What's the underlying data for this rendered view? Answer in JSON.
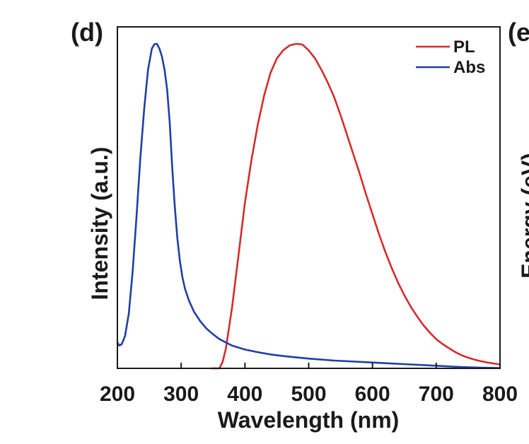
{
  "chart_data": {
    "type": "line",
    "panel_label": "(d)",
    "neighbor_panel": {
      "label": "(e",
      "ylabel": "Energy (eV)"
    },
    "xlabel": "Wavelength (nm)",
    "ylabel": "Intensity (a.u.)",
    "xlim": [
      200,
      800
    ],
    "ylim": [
      0,
      1
    ],
    "x_ticks": [
      200,
      300,
      400,
      500,
      600,
      700,
      800
    ],
    "y_ticks_shown": false,
    "grid": false,
    "legend_position": "top-right",
    "series": [
      {
        "name": "PL",
        "color": "#d62b2b",
        "x": [
          348,
          360,
          365,
          370,
          380,
          390,
          400,
          410,
          420,
          430,
          440,
          450,
          460,
          470,
          480,
          490,
          500,
          510,
          520,
          530,
          540,
          550,
          560,
          570,
          580,
          590,
          600,
          610,
          620,
          630,
          640,
          650,
          660,
          670,
          680,
          690,
          700,
          710,
          720,
          730,
          740,
          750,
          760,
          770,
          780,
          790,
          800
        ],
        "values": [
          0.0,
          0.0,
          0.02,
          0.06,
          0.19,
          0.35,
          0.51,
          0.64,
          0.75,
          0.84,
          0.91,
          0.955,
          0.98,
          0.995,
          1.0,
          0.998,
          0.98,
          0.955,
          0.92,
          0.88,
          0.835,
          0.78,
          0.72,
          0.66,
          0.6,
          0.535,
          0.475,
          0.415,
          0.36,
          0.31,
          0.265,
          0.225,
          0.19,
          0.16,
          0.133,
          0.11,
          0.09,
          0.075,
          0.062,
          0.05,
          0.04,
          0.033,
          0.027,
          0.022,
          0.018,
          0.015,
          0.012
        ]
      },
      {
        "name": "Abs",
        "color": "#1f3fa6",
        "x": [
          200,
          203,
          207,
          212,
          218,
          224,
          230,
          236,
          242,
          248,
          254,
          258,
          262,
          266,
          270,
          274,
          278,
          282,
          286,
          290,
          294,
          298,
          302,
          306,
          312,
          320,
          330,
          340,
          350,
          360,
          380,
          400,
          420,
          440,
          460,
          480,
          500,
          540,
          580,
          620,
          660,
          700,
          740,
          770,
          800
        ],
        "values": [
          0.08,
          0.07,
          0.075,
          0.1,
          0.17,
          0.3,
          0.47,
          0.65,
          0.8,
          0.92,
          0.985,
          0.999,
          1.0,
          0.985,
          0.96,
          0.92,
          0.86,
          0.76,
          0.62,
          0.5,
          0.4,
          0.33,
          0.28,
          0.245,
          0.21,
          0.175,
          0.145,
          0.122,
          0.105,
          0.09,
          0.07,
          0.058,
          0.05,
          0.043,
          0.038,
          0.034,
          0.03,
          0.024,
          0.02,
          0.016,
          0.012,
          0.008,
          0.004,
          0.002,
          0.001
        ]
      }
    ]
  }
}
